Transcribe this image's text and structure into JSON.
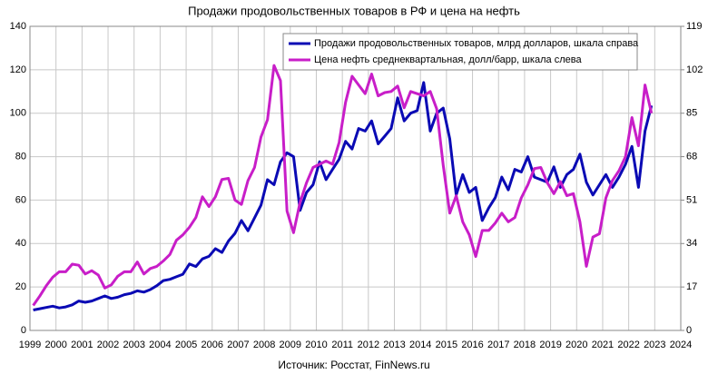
{
  "chart_data": {
    "type": "line",
    "title": "Продажи продовольственных товаров в РФ и цена на нефть",
    "source": "Источник: Росстат, FinNews.ru",
    "x": [
      1999.125,
      1999.375,
      1999.625,
      1999.875,
      2000.125,
      2000.375,
      2000.625,
      2000.875,
      2001.125,
      2001.375,
      2001.625,
      2001.875,
      2002.125,
      2002.375,
      2002.625,
      2002.875,
      2003.125,
      2003.375,
      2003.625,
      2003.875,
      2004.125,
      2004.375,
      2004.625,
      2004.875,
      2005.125,
      2005.375,
      2005.625,
      2005.875,
      2006.125,
      2006.375,
      2006.625,
      2006.875,
      2007.125,
      2007.375,
      2007.625,
      2007.875,
      2008.125,
      2008.375,
      2008.625,
      2008.875,
      2009.125,
      2009.375,
      2009.625,
      2009.875,
      2010.125,
      2010.375,
      2010.625,
      2010.875,
      2011.125,
      2011.375,
      2011.625,
      2011.875,
      2012.125,
      2012.375,
      2012.625,
      2012.875,
      2013.125,
      2013.375,
      2013.625,
      2013.875,
      2014.125,
      2014.375,
      2014.625,
      2014.875,
      2015.125,
      2015.375,
      2015.625,
      2015.875,
      2016.125,
      2016.375,
      2016.625,
      2016.875,
      2017.125,
      2017.375,
      2017.625,
      2017.875,
      2018.125,
      2018.375,
      2018.625,
      2018.875,
      2019.125,
      2019.375,
      2019.625,
      2019.875,
      2020.125,
      2020.375,
      2020.625,
      2020.875,
      2021.125,
      2021.375,
      2021.625,
      2021.875,
      2022.125,
      2022.375,
      2022.625,
      2022.875
    ],
    "series": [
      {
        "name": "Продажи продовольственных товаров, млрд долларов, шкала справа",
        "color": "#0a0ab4",
        "axis": "y2",
        "values": [
          8,
          8.5,
          9,
          9.5,
          8.8,
          9.2,
          10,
          11.5,
          11,
          11.5,
          12.5,
          13.5,
          12.5,
          13,
          14,
          14.5,
          15.5,
          15,
          16,
          17.5,
          19.5,
          20,
          21,
          22,
          26,
          25,
          28,
          29,
          32,
          30.5,
          35,
          38,
          43,
          39,
          44,
          49,
          59,
          57,
          66,
          69.5,
          68,
          47,
          54,
          57,
          66,
          59,
          63,
          67,
          74,
          71,
          79,
          78,
          82,
          73,
          76,
          79,
          91,
          82,
          85,
          86,
          97,
          78,
          85,
          87,
          75,
          53,
          61,
          54,
          56,
          43,
          48,
          52,
          60,
          55,
          63,
          62,
          68,
          60,
          59,
          58,
          64,
          56,
          61,
          63,
          69,
          58,
          53,
          57,
          61,
          56,
          60,
          65,
          72,
          56,
          78,
          88
        ]
      },
      {
        "name": "Цена нефть среднеквартальная, долл/барр, шкала слева",
        "color": "#c81ec8",
        "values": [
          11.5,
          15.8,
          20.5,
          24.5,
          27,
          27,
          30.5,
          30,
          26,
          27.5,
          25.5,
          19.5,
          21,
          25,
          27,
          27,
          31.5,
          26,
          28.5,
          29.5,
          32,
          35,
          41.5,
          44,
          47.5,
          52,
          61.5,
          57,
          61.5,
          69.5,
          70,
          60,
          58,
          69,
          75,
          89,
          97,
          122,
          115,
          55,
          45,
          59,
          68,
          75,
          76.5,
          78,
          76.5,
          86.5,
          105,
          117,
          113,
          109,
          118,
          108,
          109.5,
          110,
          112.5,
          102.5,
          110,
          109,
          108,
          110,
          102,
          76,
          54,
          62,
          50,
          44,
          34,
          46,
          46,
          49.5,
          54,
          50,
          52,
          61,
          67,
          74.5,
          75,
          68,
          63,
          68.5,
          62,
          63,
          50,
          29.5,
          43,
          44.5,
          61,
          69,
          73.5,
          80,
          98,
          85,
          113,
          100
        ]
      }
    ],
    "xlim": [
      1999,
      2024
    ],
    "xticks": [
      1999,
      2000,
      2001,
      2002,
      2003,
      2004,
      2005,
      2006,
      2007,
      2008,
      2009,
      2010,
      2011,
      2012,
      2013,
      2014,
      2015,
      2016,
      2017,
      2018,
      2019,
      2020,
      2021,
      2022,
      2023,
      2024
    ],
    "ylim": [
      0,
      140
    ],
    "yticks": [
      0,
      20,
      40,
      60,
      80,
      100,
      120,
      140
    ],
    "y2lim": [
      0,
      119
    ],
    "y2ticks": [
      0,
      17,
      34,
      51,
      68,
      85,
      102,
      119
    ],
    "grid": true,
    "legend": "top right"
  }
}
